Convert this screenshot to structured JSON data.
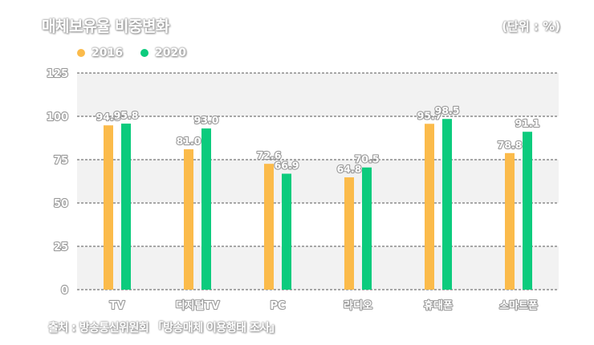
{
  "header": {
    "title": "매체보유율 비중변화",
    "unit": "(단위 : %)"
  },
  "source": "출처 : 방송통신위원회 「방송매체 이용행태 조사」",
  "colors": {
    "series_2016": "#FBBB4B",
    "series_2020": "#0CCB7D",
    "band": "#F2F2F2",
    "grid": "#555555"
  },
  "chart_data": {
    "type": "bar",
    "title": "매체보유율 비중변화",
    "ylabel": "(단위 : %)",
    "categories": [
      "TV",
      "디지털TV",
      "PC",
      "라디오",
      "휴대폰",
      "스마트폰"
    ],
    "series": [
      {
        "name": "2016",
        "values": [
          94.8,
          81.0,
          72.6,
          64.8,
          95.7,
          78.8
        ],
        "labels": [
          "94.8",
          "81.0",
          "72.6",
          "64.8",
          "95.7",
          "78.8"
        ]
      },
      {
        "name": "2020",
        "values": [
          95.8,
          93.0,
          66.9,
          70.5,
          98.5,
          91.1
        ],
        "labels": [
          "95.8",
          "93.0",
          "66.9",
          "70.5",
          "98.5",
          "91.1"
        ]
      }
    ],
    "ylim": [
      0,
      125
    ],
    "yticks": [
      "0",
      "25",
      "50",
      "75",
      "100",
      "125"
    ],
    "grid": true,
    "legend": "top-left"
  }
}
